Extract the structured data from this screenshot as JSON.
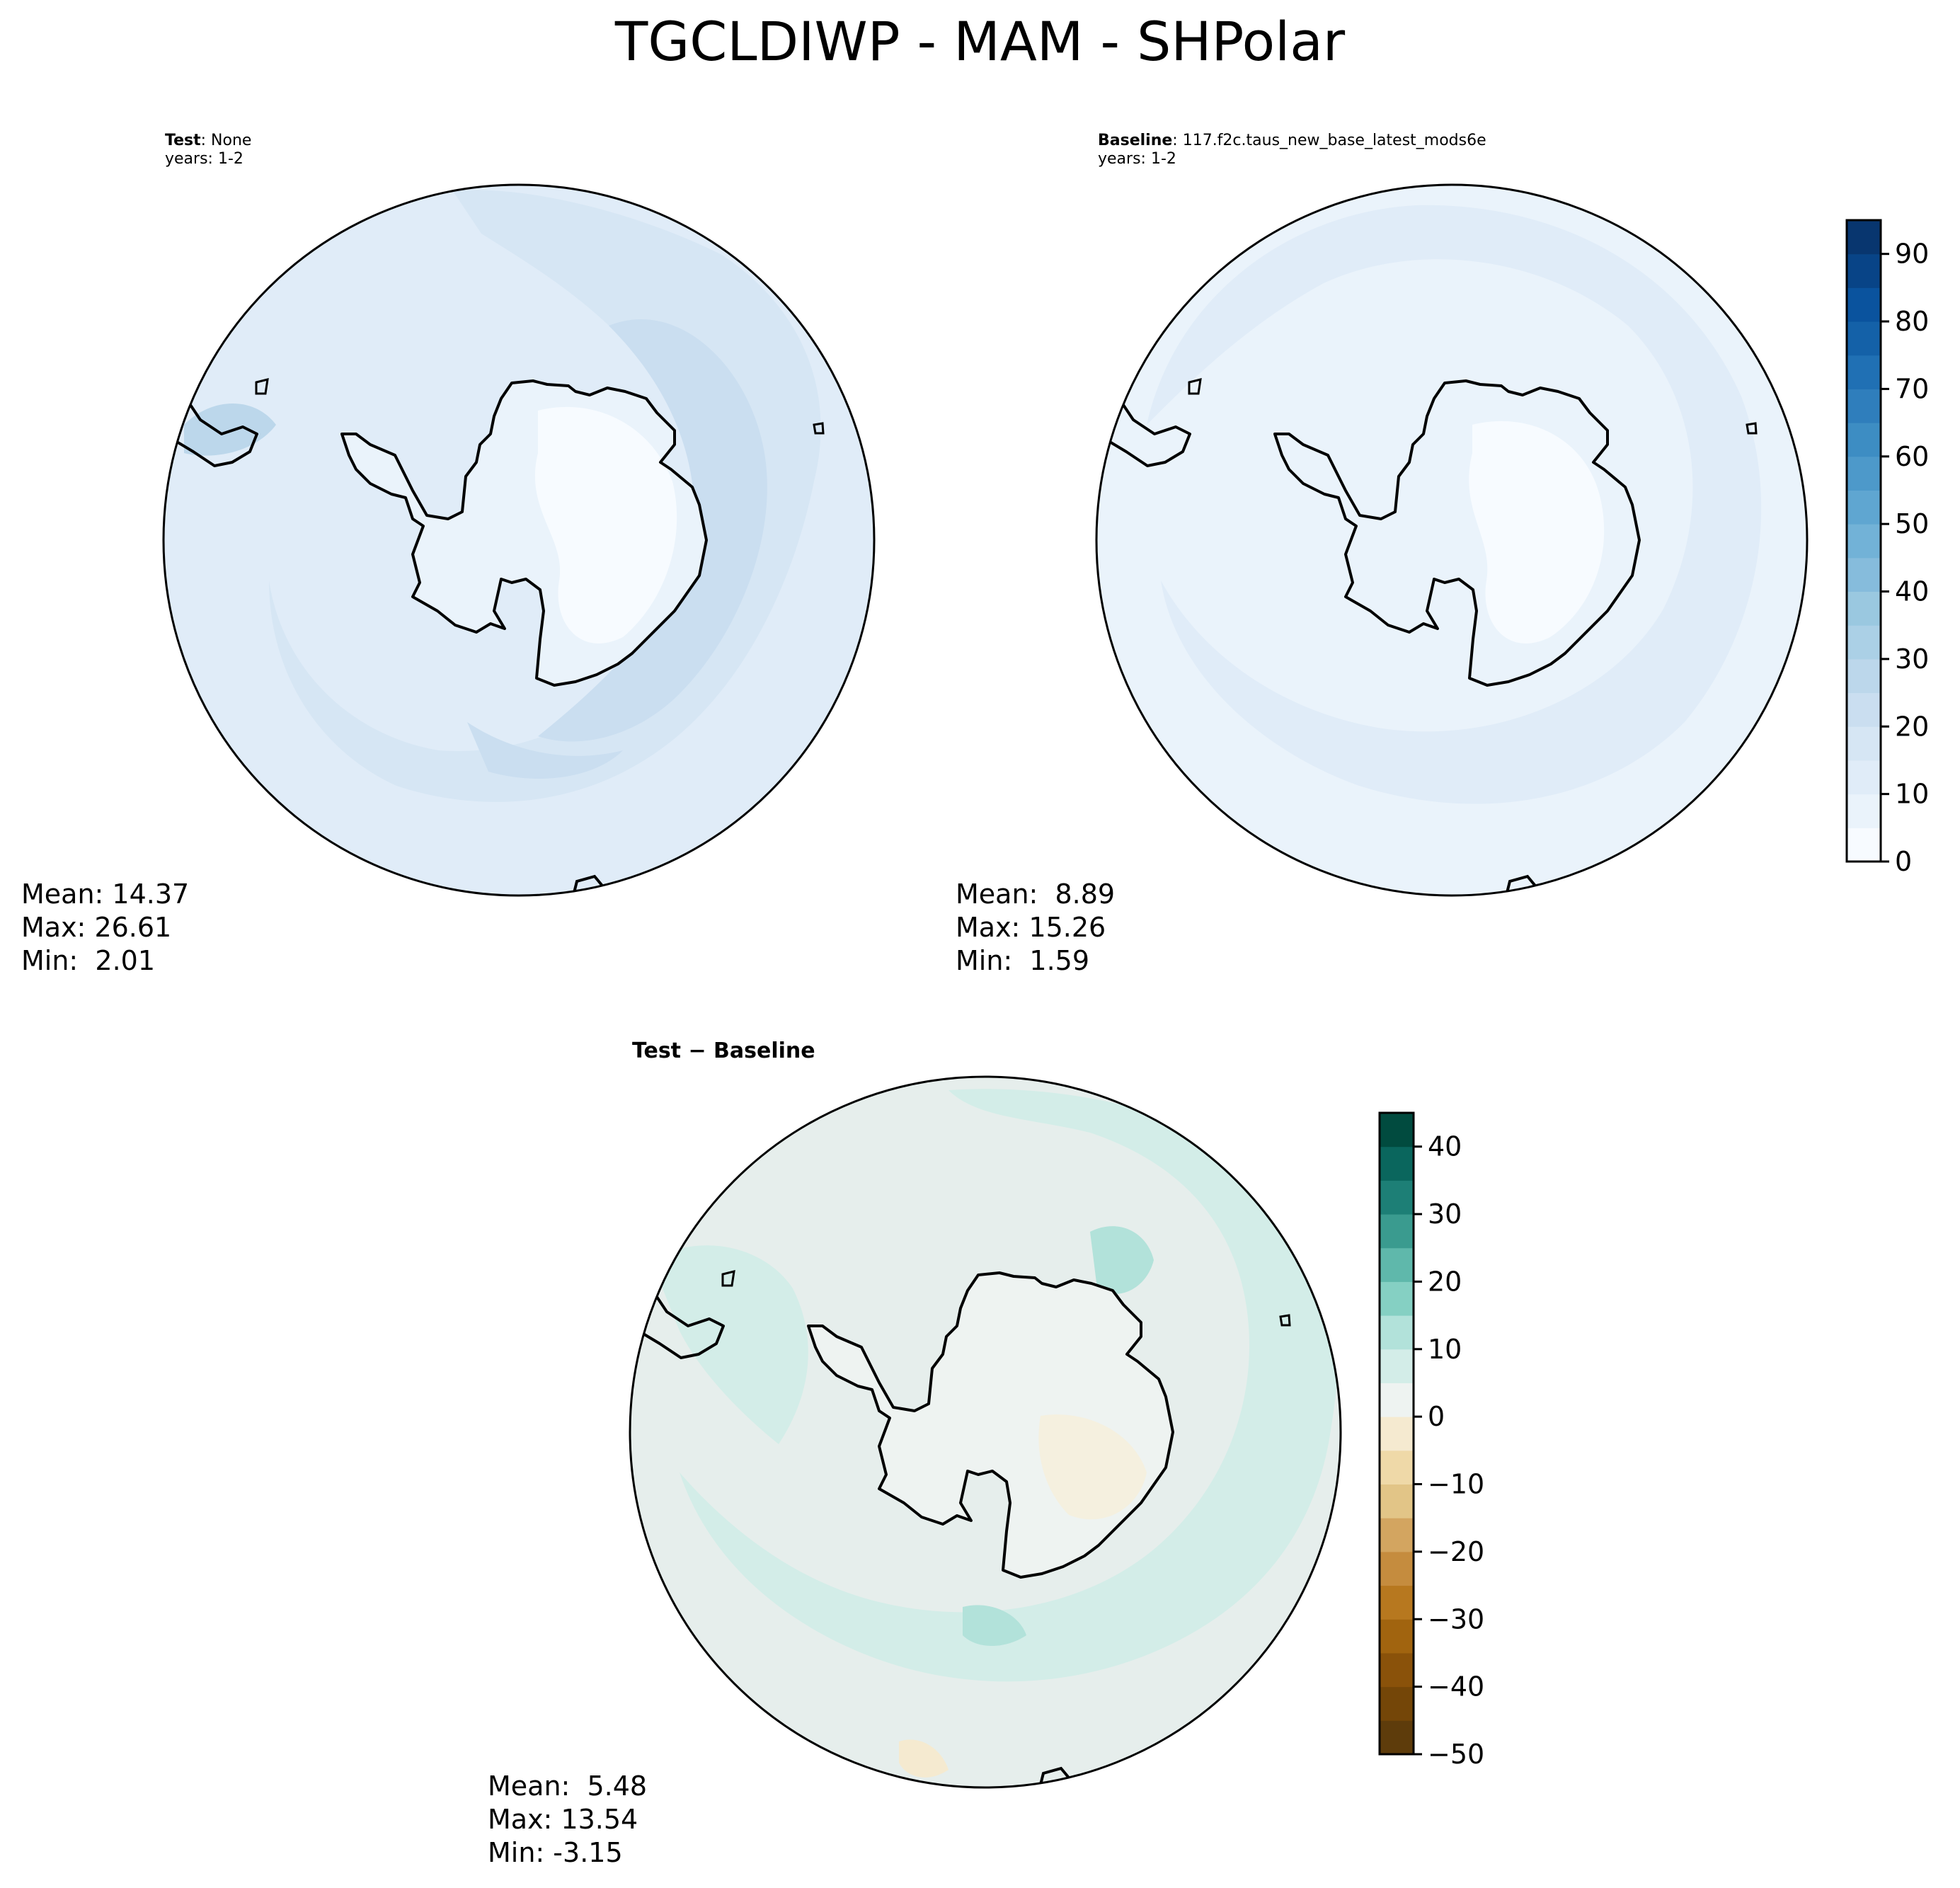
{
  "figure_title": "TGCLDIWP - MAM - SHPolar",
  "panels": {
    "test": {
      "label_bold": "Test",
      "label_rest": ": None",
      "years": "years: 1-2",
      "stats": {
        "mean": "Mean: 14.37",
        "max": "Max: 26.61",
        "min": "Min:  2.01"
      }
    },
    "baseline": {
      "label_bold": "Baseline",
      "label_rest": ": 117.f2c.taus_new_base_latest_mods6e",
      "years": "years: 1-2",
      "stats": {
        "mean": "Mean:  8.89",
        "max": "Max: 15.26",
        "min": "Min:  1.59"
      }
    },
    "diff": {
      "label_bold": "Test − Baseline",
      "stats": {
        "mean": "Mean:  5.48",
        "max": "Max: 13.54",
        "min": "Min: -3.15"
      }
    }
  },
  "chart_data": [
    {
      "type": "heatmap",
      "projection": "south-polar-stereographic",
      "title": "Test: None",
      "subtitle": "years: 1-2",
      "stats": {
        "mean": 14.37,
        "max": 26.61,
        "min": 2.01
      },
      "colorbar": {
        "cmap": "Blues",
        "levels": [
          0,
          5,
          10,
          15,
          20,
          25,
          30,
          35,
          40,
          45,
          50,
          55,
          60,
          65,
          70,
          75,
          80,
          85,
          90,
          95
        ],
        "ticks": [
          0,
          10,
          20,
          30,
          40,
          50,
          60,
          70,
          80,
          90
        ],
        "shared_with": "baseline"
      }
    },
    {
      "type": "heatmap",
      "projection": "south-polar-stereographic",
      "title": "Baseline: 117.f2c.taus_new_base_latest_mods6e",
      "subtitle": "years: 1-2",
      "stats": {
        "mean": 8.89,
        "max": 15.26,
        "min": 1.59
      },
      "colorbar": {
        "cmap": "Blues",
        "levels": [
          0,
          5,
          10,
          15,
          20,
          25,
          30,
          35,
          40,
          45,
          50,
          55,
          60,
          65,
          70,
          75,
          80,
          85,
          90,
          95
        ],
        "ticks": [
          0,
          10,
          20,
          30,
          40,
          50,
          60,
          70,
          80,
          90
        ]
      }
    },
    {
      "type": "heatmap",
      "projection": "south-polar-stereographic",
      "title": "Test − Baseline",
      "stats": {
        "mean": 5.48,
        "max": 13.54,
        "min": -3.15
      },
      "colorbar": {
        "cmap": "BrBG",
        "levels": [
          -50,
          -45,
          -40,
          -35,
          -30,
          -25,
          -20,
          -15,
          -10,
          -5,
          0,
          5,
          10,
          15,
          20,
          25,
          30,
          35,
          40,
          45
        ],
        "ticks": [
          -50,
          -40,
          -30,
          -20,
          -10,
          0,
          10,
          20,
          30,
          40
        ]
      }
    }
  ],
  "colors": {
    "blues": [
      "#f7fbff",
      "#eaf3fb",
      "#e0ecf8",
      "#d6e6f4",
      "#cadef0",
      "#bcd7eb",
      "#abd0e6",
      "#9ac8e0",
      "#86bcdc",
      "#72b2d7",
      "#5fa6d1",
      "#4d99ca",
      "#3d8dc3",
      "#2f7ebc",
      "#2070b4",
      "#1461a8",
      "#0a539e",
      "#084487",
      "#08366f"
    ],
    "brbg": [
      "#5e3c0b",
      "#744608",
      "#8a520a",
      "#a1640f",
      "#b7781f",
      "#c58c3e",
      "#d3a560",
      "#e2c587",
      "#efd9a8",
      "#f5ead0",
      "#eef3f1",
      "#d3ede8",
      "#b2e2da",
      "#85d0c3",
      "#5fb8ab",
      "#3a9b8f",
      "#1d7f76",
      "#0a665d",
      "#014b3f"
    ]
  }
}
